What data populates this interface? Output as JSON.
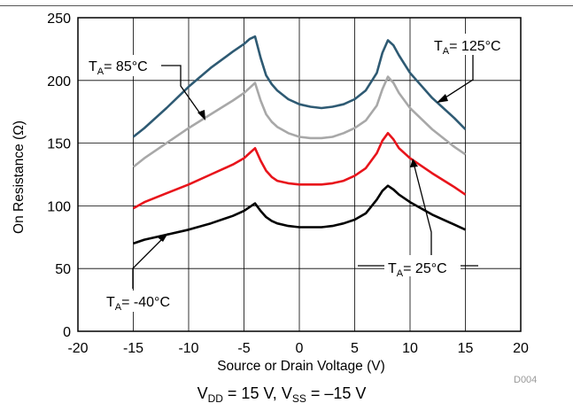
{
  "chart_data": {
    "type": "line",
    "xlabel": "Source or Drain Voltage (V)",
    "ylabel": "On Resistance (Ω)",
    "xlim": [
      -20,
      20
    ],
    "ylim": [
      0,
      250
    ],
    "xticks": [
      -20,
      -15,
      -10,
      -5,
      0,
      5,
      10,
      15,
      20
    ],
    "yticks": [
      0,
      50,
      100,
      150,
      200,
      250
    ],
    "grid": true,
    "series": [
      {
        "name": "TA= 125°C",
        "color": "#2e5a73",
        "x": [
          -15,
          -14,
          -12,
          -10,
          -8,
          -6,
          -5,
          -4.5,
          -4,
          -3.5,
          -3,
          -2.5,
          -2,
          -1,
          0,
          1,
          2,
          3,
          4,
          5,
          6,
          7,
          7.5,
          8,
          8.5,
          9,
          10,
          12,
          14,
          15
        ],
        "y": [
          155,
          162,
          178,
          195,
          210,
          223,
          229,
          233,
          235,
          218,
          204,
          197,
          192,
          185,
          181,
          179,
          178,
          179,
          181,
          185,
          192,
          206,
          222,
          232,
          228,
          220,
          206,
          186,
          170,
          161
        ]
      },
      {
        "name": "TA= 85°C",
        "color": "#a8a8a8",
        "x": [
          -15,
          -14,
          -12,
          -10,
          -8,
          -6,
          -5,
          -4.5,
          -4,
          -3.5,
          -3,
          -2.5,
          -2,
          -1,
          0,
          1,
          2,
          3,
          4,
          5,
          6,
          7,
          7.5,
          8,
          8.5,
          9,
          10,
          12,
          14,
          15
        ],
        "y": [
          131,
          138,
          150,
          162,
          173,
          184,
          190,
          194,
          198,
          184,
          173,
          167,
          163,
          158,
          155,
          154,
          154,
          155,
          158,
          162,
          168,
          180,
          193,
          203,
          198,
          190,
          178,
          161,
          147,
          141
        ]
      },
      {
        "name": "TA= 25°C",
        "color": "#e8141b",
        "x": [
          -15,
          -14,
          -12,
          -10,
          -8,
          -6,
          -5,
          -4.5,
          -4,
          -3.5,
          -3,
          -2.5,
          -2,
          -1,
          0,
          1,
          2,
          3,
          4,
          5,
          6,
          7,
          7.5,
          8,
          8.5,
          9,
          10,
          12,
          14,
          15
        ],
        "y": [
          98,
          103,
          110,
          117,
          125,
          133,
          138,
          142,
          146,
          136,
          128,
          123,
          120,
          118,
          117,
          117,
          117,
          118,
          120,
          124,
          130,
          142,
          152,
          158,
          153,
          146,
          138,
          126,
          115,
          109
        ]
      },
      {
        "name": "TA= -40°C",
        "color": "#000000",
        "x": [
          -15,
          -14,
          -12,
          -10,
          -8,
          -6,
          -5,
          -4.5,
          -4,
          -3.5,
          -3,
          -2.5,
          -2,
          -1,
          0,
          1,
          2,
          3,
          4,
          5,
          6,
          7,
          7.5,
          8,
          8.5,
          9,
          10,
          12,
          14,
          15
        ],
        "y": [
          70,
          73,
          77,
          81,
          86,
          92,
          96,
          99,
          102,
          96,
          91,
          88,
          86,
          84,
          83,
          83,
          83,
          84,
          86,
          89,
          94,
          105,
          112,
          116,
          113,
          109,
          103,
          93,
          85,
          81
        ]
      }
    ],
    "annotations": [
      {
        "main": "T",
        "sub": "A",
        "rest": "= 125°C"
      },
      {
        "main": "T",
        "sub": "A",
        "rest": "= 85°C"
      },
      {
        "main": "T",
        "sub": "A",
        "rest": "= 25°C"
      },
      {
        "main": "T",
        "sub": "A",
        "rest": "= -40°C"
      }
    ],
    "figure_id": "D004",
    "conditions": {
      "v1": "V",
      "s1": "DD",
      "r1": " = 15 V, ",
      "v2": "V",
      "s2": "SS",
      "r2": " = –15 V"
    }
  }
}
